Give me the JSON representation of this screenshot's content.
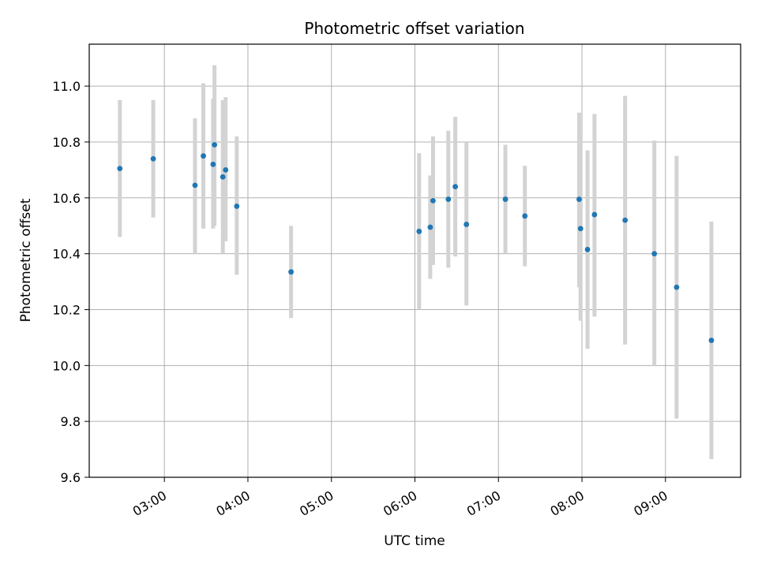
{
  "chart_data": {
    "type": "scatter",
    "title": "Photometric offset variation",
    "xlabel": "UTC time",
    "ylabel": "Photometric offset",
    "x_tick_labels": [
      "03:00",
      "04:00",
      "05:00",
      "06:00",
      "07:00",
      "08:00",
      "09:00"
    ],
    "y_tick_labels": [
      "9.6",
      "9.8",
      "10.0",
      "10.2",
      "10.4",
      "10.6",
      "10.8",
      "11.0"
    ],
    "x_ticks": [
      "03:00",
      "04:00",
      "05:00",
      "06:00",
      "07:00",
      "08:00",
      "09:00"
    ],
    "y_ticks": [
      9.6,
      9.8,
      10.0,
      10.2,
      10.4,
      10.6,
      10.8,
      11.0
    ],
    "xlim": [
      "02:06",
      "09:54"
    ],
    "ylim": [
      9.6,
      11.15
    ],
    "grid": true,
    "colors": {
      "point": "#1f77b4",
      "errorbar": "#d3d3d3",
      "grid": "#b0b0b0"
    },
    "points": [
      {
        "t": "02:28",
        "y": 10.705,
        "lo": 10.46,
        "hi": 10.95
      },
      {
        "t": "02:52",
        "y": 10.74,
        "lo": 10.53,
        "hi": 10.95
      },
      {
        "t": "03:22",
        "y": 10.645,
        "lo": 10.4,
        "hi": 10.885
      },
      {
        "t": "03:28",
        "y": 10.75,
        "lo": 10.49,
        "hi": 11.01
      },
      {
        "t": "03:35",
        "y": 10.72,
        "lo": 10.49,
        "hi": 10.955
      },
      {
        "t": "03:36",
        "y": 10.79,
        "lo": 10.5,
        "hi": 11.075
      },
      {
        "t": "03:42",
        "y": 10.675,
        "lo": 10.4,
        "hi": 10.95
      },
      {
        "t": "03:44",
        "y": 10.7,
        "lo": 10.445,
        "hi": 10.96
      },
      {
        "t": "03:52",
        "y": 10.57,
        "lo": 10.325,
        "hi": 10.82
      },
      {
        "t": "04:31",
        "y": 10.335,
        "lo": 10.17,
        "hi": 10.5
      },
      {
        "t": "06:03",
        "y": 10.48,
        "lo": 10.2,
        "hi": 10.76
      },
      {
        "t": "06:11",
        "y": 10.495,
        "lo": 10.31,
        "hi": 10.68
      },
      {
        "t": "06:13",
        "y": 10.59,
        "lo": 10.36,
        "hi": 10.82
      },
      {
        "t": "06:24",
        "y": 10.595,
        "lo": 10.35,
        "hi": 10.84
      },
      {
        "t": "06:29",
        "y": 10.64,
        "lo": 10.39,
        "hi": 10.89
      },
      {
        "t": "06:37",
        "y": 10.505,
        "lo": 10.215,
        "hi": 10.8
      },
      {
        "t": "07:05",
        "y": 10.595,
        "lo": 10.4,
        "hi": 10.79
      },
      {
        "t": "07:19",
        "y": 10.535,
        "lo": 10.355,
        "hi": 10.715
      },
      {
        "t": "07:58",
        "y": 10.595,
        "lo": 10.28,
        "hi": 10.905
      },
      {
        "t": "07:59",
        "y": 10.49,
        "lo": 10.16,
        "hi": 10.82
      },
      {
        "t": "08:04",
        "y": 10.415,
        "lo": 10.06,
        "hi": 10.77
      },
      {
        "t": "08:09",
        "y": 10.54,
        "lo": 10.175,
        "hi": 10.9
      },
      {
        "t": "08:31",
        "y": 10.52,
        "lo": 10.075,
        "hi": 10.965
      },
      {
        "t": "08:52",
        "y": 10.4,
        "lo": 10.0,
        "hi": 10.805
      },
      {
        "t": "09:08",
        "y": 10.28,
        "lo": 9.81,
        "hi": 10.75
      },
      {
        "t": "09:33",
        "y": 10.09,
        "lo": 9.665,
        "hi": 10.515
      }
    ]
  }
}
